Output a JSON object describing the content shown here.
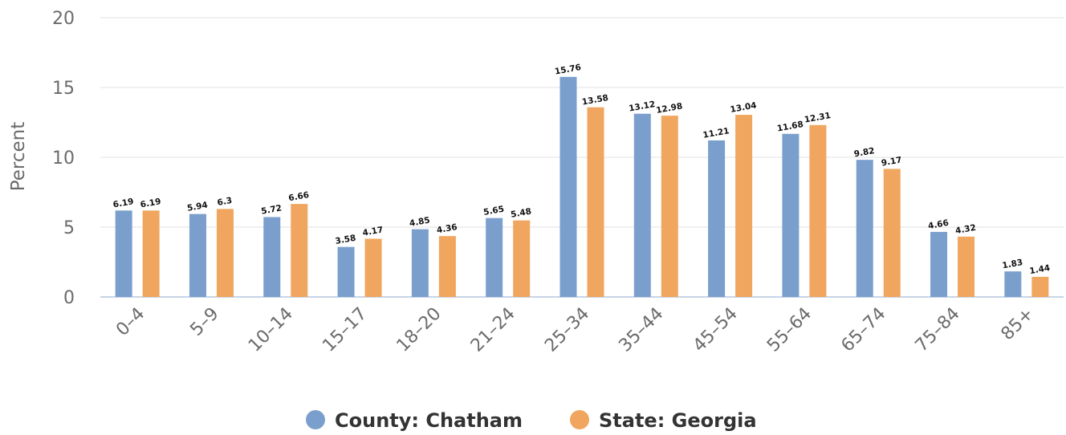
{
  "chart_data": {
    "type": "bar",
    "title": "",
    "xlabel": "",
    "ylabel": "Percent",
    "ylim": [
      0,
      20
    ],
    "yticks": [
      0,
      5,
      10,
      15,
      20
    ],
    "grid": true,
    "legend_position": "bottom-center",
    "categories": [
      "0–4",
      "5–9",
      "10–14",
      "15–17",
      "18–20",
      "21–24",
      "25–34",
      "35–44",
      "45–54",
      "55–64",
      "65–74",
      "75–84",
      "85+"
    ],
    "series": [
      {
        "name": "County: Chatham",
        "color": "#7b9fcc",
        "values": [
          6.19,
          5.94,
          5.72,
          3.58,
          4.85,
          5.65,
          15.76,
          13.12,
          11.21,
          11.68,
          9.82,
          4.66,
          1.83
        ],
        "labels": [
          "6.19",
          "5.94",
          "5.72",
          "3.58",
          "4.85",
          "5.65",
          "15.76",
          "13.12",
          "11.21",
          "11.68",
          "9.82",
          "4.66",
          "1.83"
        ]
      },
      {
        "name": "State: Georgia",
        "color": "#f0a65e",
        "values": [
          6.19,
          6.3,
          6.66,
          4.17,
          4.36,
          5.48,
          13.58,
          12.98,
          13.04,
          12.31,
          9.17,
          4.32,
          1.44
        ],
        "labels": [
          "6.19",
          "6.3",
          "6.66",
          "4.17",
          "4.36",
          "5.48",
          "13.58",
          "12.98",
          "13.04",
          "12.31",
          "9.17",
          "4.32",
          "1.44"
        ]
      }
    ]
  }
}
